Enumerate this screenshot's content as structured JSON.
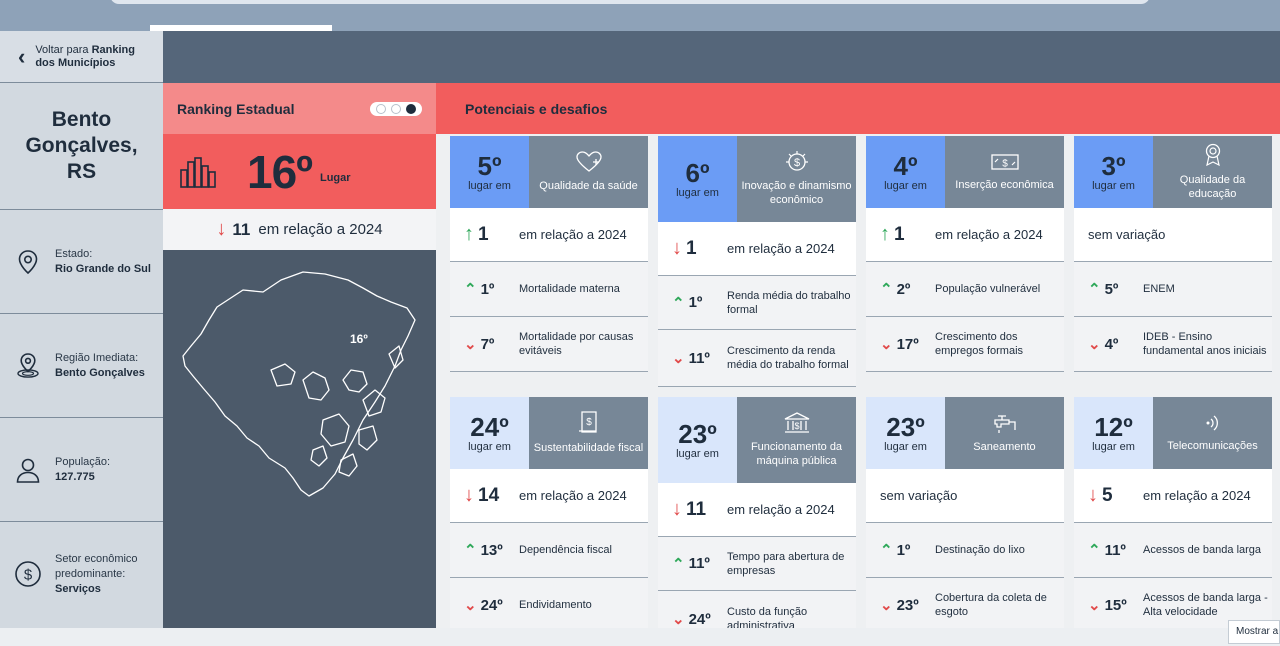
{
  "nav": {
    "back_prefix": "Voltar para ",
    "back_bold_1": "Ranking",
    "back_bold_2": "dos Municípios"
  },
  "city": {
    "name": "Bento Gonçalves, RS"
  },
  "info": [
    {
      "icon": "location-pin-icon",
      "label": "Estado:",
      "value": "Rio Grande do Sul"
    },
    {
      "icon": "region-pin-icon",
      "label": "Região Imediata:",
      "value": "Bento Gonçalves"
    },
    {
      "icon": "person-icon",
      "label": "População:",
      "value": "127.775"
    },
    {
      "icon": "dollar-circle-icon",
      "label": "Setor econômico predominante:",
      "value": "Serviços"
    }
  ],
  "ranking": {
    "title": "Ranking Estadual",
    "position": "16º",
    "position_suffix": "Lugar",
    "variation_value": "11",
    "variation_text": "em relação a 2024",
    "map_label": "16º"
  },
  "potentials": {
    "title": "Potenciais e desafios",
    "cards": [
      {
        "pos": "5º",
        "sub": "lugar em",
        "category": "Qualidade da saúde",
        "icon": "heart-plus-icon",
        "highlight": true,
        "main": {
          "dir": "up",
          "value": "1",
          "text": "em relação a 2024"
        },
        "items": [
          {
            "dir": "up",
            "value": "1º",
            "text": "Mortalidade materna"
          },
          {
            "dir": "down",
            "value": "7º",
            "text": "Mortalidade por causas evitáveis"
          }
        ]
      },
      {
        "pos": "6º",
        "sub": "lugar em",
        "category": "Inovação e dinamismo econômico",
        "icon": "innovation-icon",
        "highlight": true,
        "main": {
          "dir": "down",
          "value": "1",
          "text": "em relação a 2024"
        },
        "items": [
          {
            "dir": "up",
            "value": "1º",
            "text": "Renda média do trabalho formal"
          },
          {
            "dir": "down",
            "value": "11º",
            "text": "Crescimento da renda média do trabalho formal"
          }
        ]
      },
      {
        "pos": "4º",
        "sub": "lugar em",
        "category": "Inserção econômica",
        "icon": "money-icon",
        "highlight": true,
        "main": {
          "dir": "up",
          "value": "1",
          "text": "em relação a 2024"
        },
        "items": [
          {
            "dir": "up",
            "value": "2º",
            "text": "População vulnerável"
          },
          {
            "dir": "down",
            "value": "17º",
            "text": "Crescimento dos empregos formais"
          }
        ]
      },
      {
        "pos": "3º",
        "sub": "lugar em",
        "category": "Qualidade da educação",
        "icon": "medal-icon",
        "highlight": true,
        "main": {
          "dir": "none",
          "value": "",
          "text": "sem variação"
        },
        "items": [
          {
            "dir": "up",
            "value": "5º",
            "text": "ENEM"
          },
          {
            "dir": "down",
            "value": "4º",
            "text": "IDEB - Ensino fundamental anos iniciais"
          }
        ]
      },
      {
        "pos": "24º",
        "sub": "lugar em",
        "category": "Sustentabilidade fiscal",
        "icon": "fiscal-document-icon",
        "highlight": false,
        "main": {
          "dir": "down",
          "value": "14",
          "text": "em relação a 2024"
        },
        "items": [
          {
            "dir": "up",
            "value": "13º",
            "text": "Dependência fiscal"
          },
          {
            "dir": "down",
            "value": "24º",
            "text": "Endividamento"
          }
        ]
      },
      {
        "pos": "23º",
        "sub": "lugar em",
        "category": "Funcionamento da máquina pública",
        "icon": "public-building-icon",
        "highlight": false,
        "main": {
          "dir": "down",
          "value": "11",
          "text": "em relação a 2024"
        },
        "items": [
          {
            "dir": "up",
            "value": "11º",
            "text": "Tempo para abertura de empresas"
          },
          {
            "dir": "down",
            "value": "24º",
            "text": "Custo da função administrativa"
          }
        ]
      },
      {
        "pos": "23º",
        "sub": "lugar em",
        "category": "Saneamento",
        "icon": "faucet-icon",
        "highlight": false,
        "main": {
          "dir": "none",
          "value": "",
          "text": "sem variação"
        },
        "items": [
          {
            "dir": "up",
            "value": "1º",
            "text": "Destinação do lixo"
          },
          {
            "dir": "down",
            "value": "23º",
            "text": "Cobertura da coleta de esgoto"
          }
        ]
      },
      {
        "pos": "12º",
        "sub": "lugar em",
        "category": "Telecomunicações",
        "icon": "signal-icon",
        "highlight": false,
        "main": {
          "dir": "down",
          "value": "5",
          "text": "em relação a 2024"
        },
        "items": [
          {
            "dir": "up",
            "value": "11º",
            "text": "Acessos de banda larga"
          },
          {
            "dir": "down",
            "value": "15º",
            "text": "Acessos de banda larga - Alta velocidade"
          }
        ]
      }
    ]
  },
  "footer": {
    "show_more": "Mostrar a"
  },
  "colors": {
    "accent_red": "#f25d5d",
    "highlight_blue": "#6b9cf5",
    "slate": "#4c5a6a",
    "up": "#2fa85a",
    "down": "#e14a4a"
  }
}
